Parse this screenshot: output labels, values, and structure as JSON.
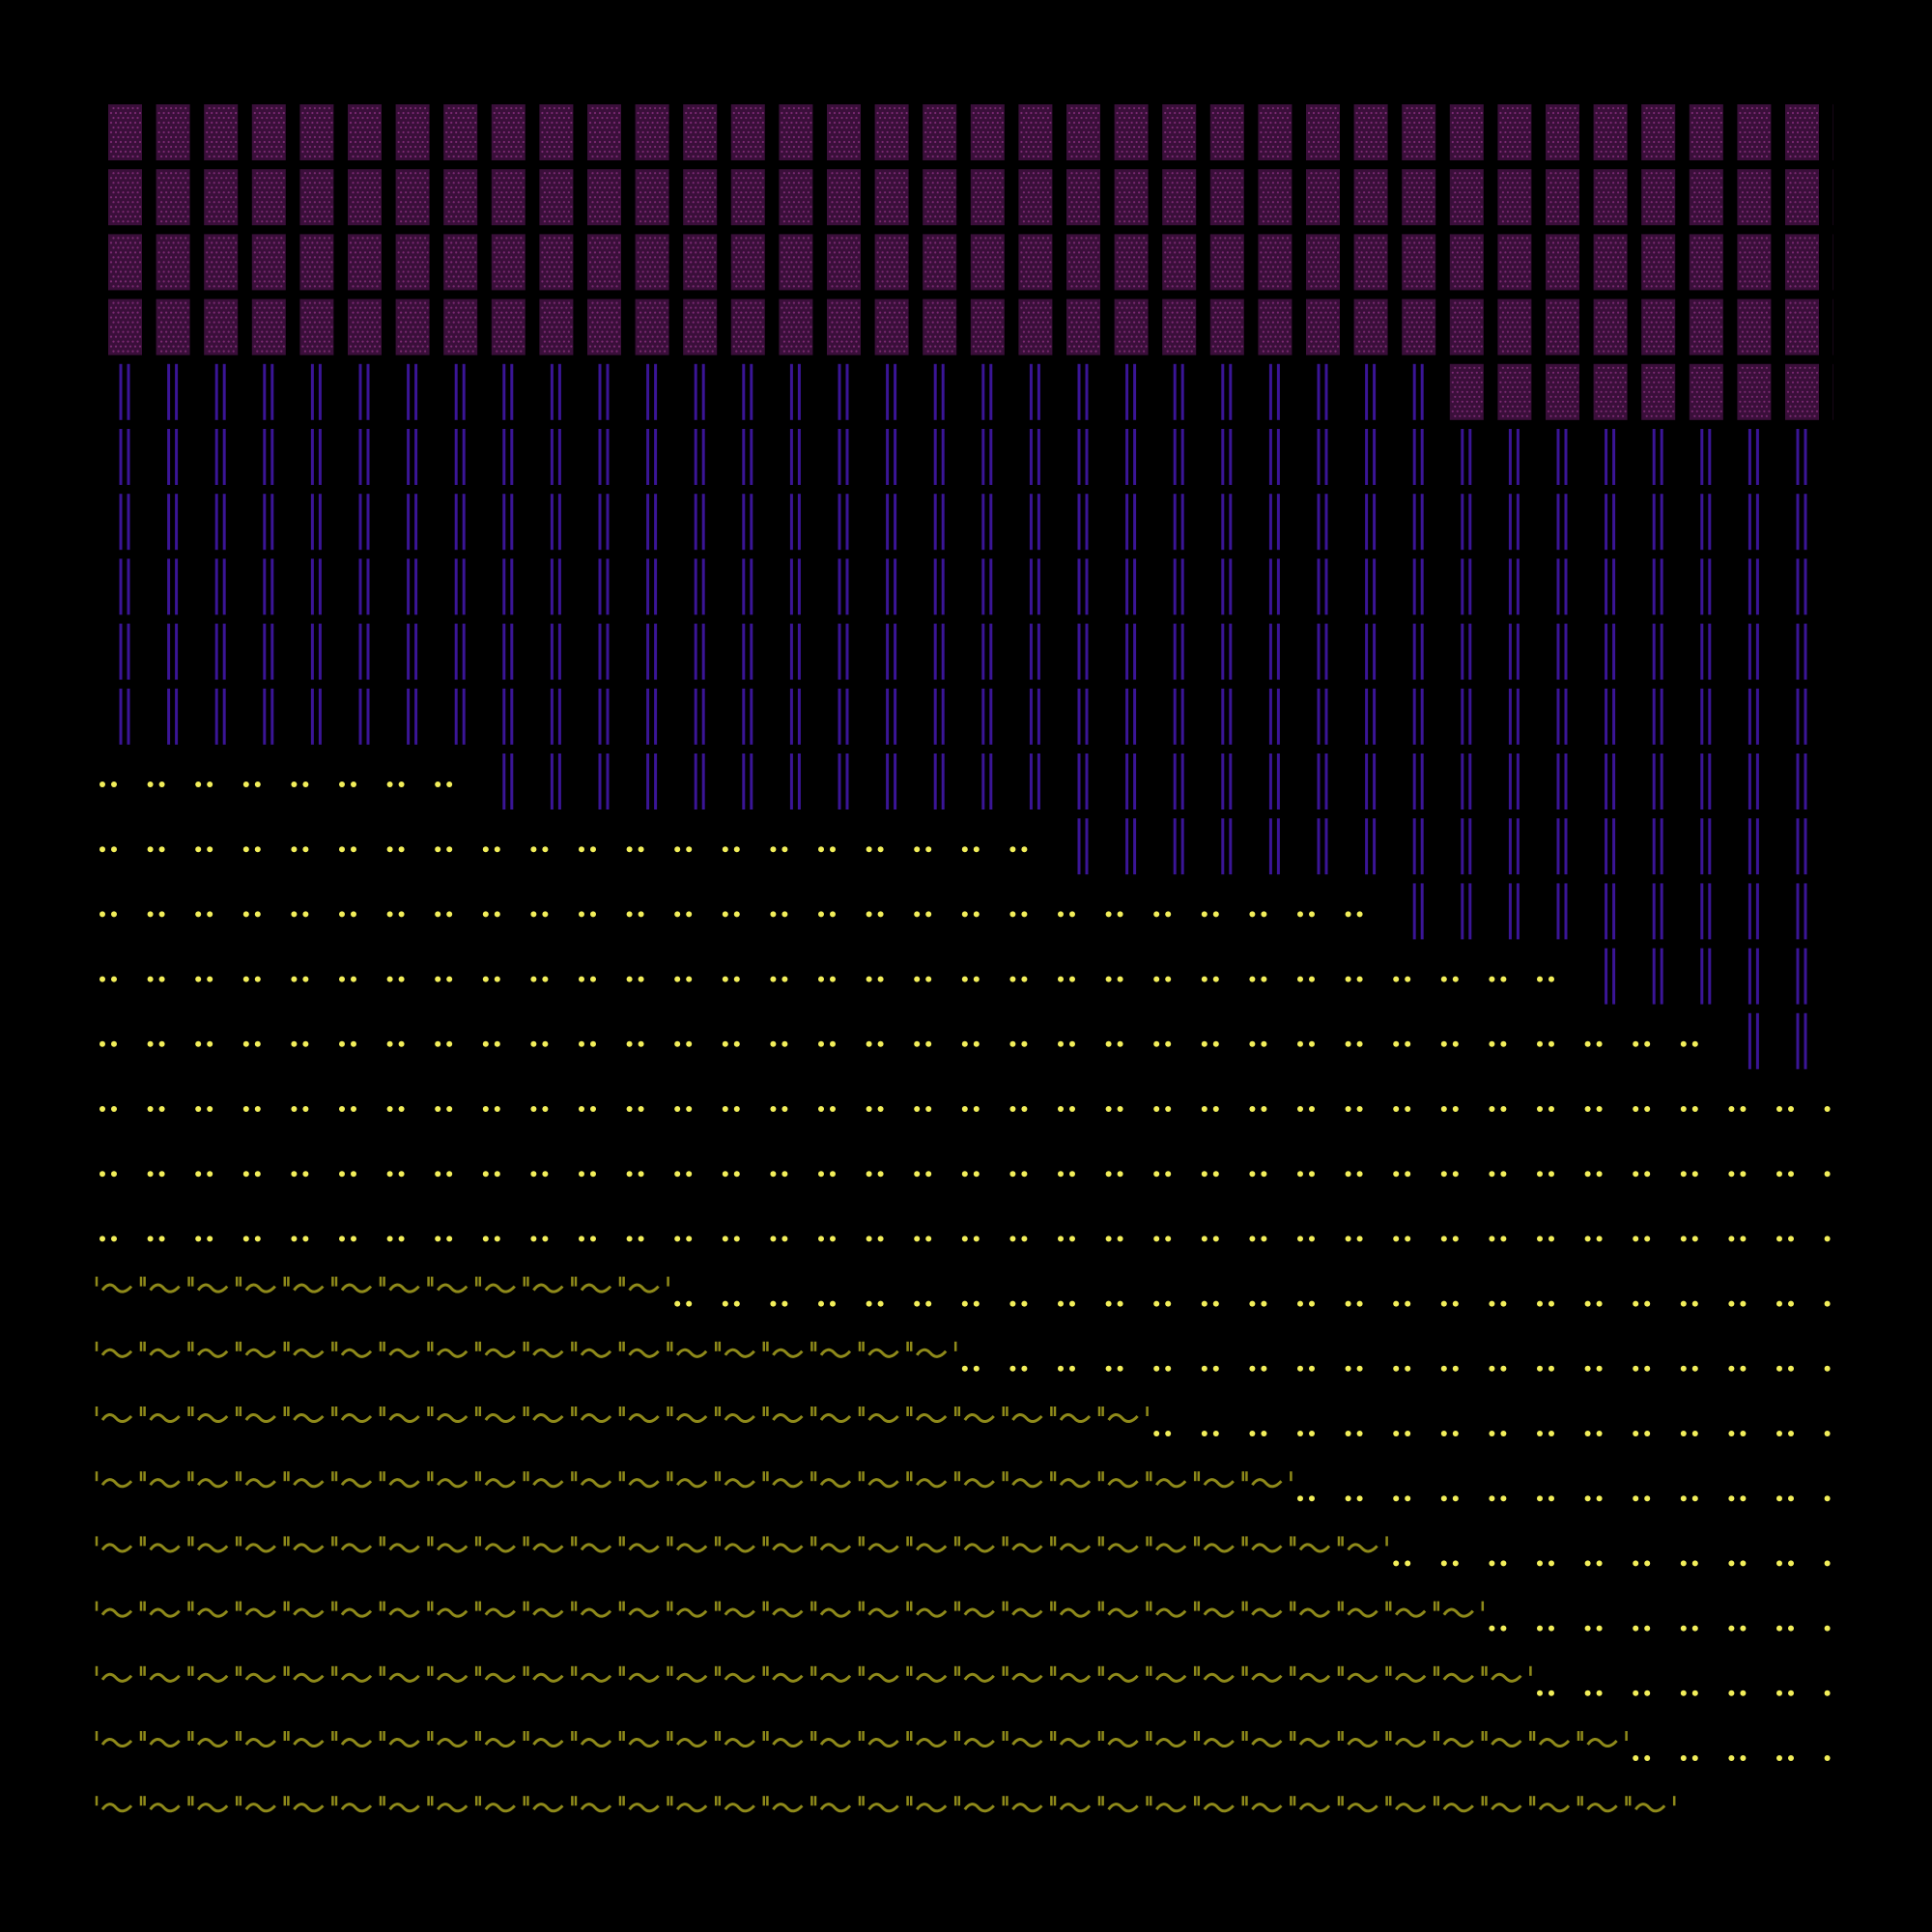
{
  "colors": {
    "background": "#000000",
    "waffle_fill": "#3a0f3a",
    "waffle_dots": "#7a2a72",
    "bar_stroke": "#3a1596",
    "dot_fill": "#f2ee5a",
    "wave_stroke": "#8f8a1a"
  },
  "rows": [
    {
      "y": 0,
      "segments": [
        {
          "pattern": "waffle",
          "from": 0,
          "to": 37
        }
      ]
    },
    {
      "y": 1,
      "segments": [
        {
          "pattern": "waffle",
          "from": 0,
          "to": 37
        }
      ]
    },
    {
      "y": 2,
      "segments": [
        {
          "pattern": "waffle",
          "from": 0,
          "to": 37
        }
      ]
    },
    {
      "y": 3,
      "segments": [
        {
          "pattern": "waffle",
          "from": 0,
          "to": 37
        }
      ]
    },
    {
      "y": 4,
      "segments": [
        {
          "pattern": "bars",
          "from": 0,
          "to": 28
        },
        {
          "pattern": "waffle",
          "from": 28,
          "to": 37
        }
      ]
    },
    {
      "y": 5,
      "segments": [
        {
          "pattern": "bars",
          "from": 0,
          "to": 36
        }
      ]
    },
    {
      "y": 6,
      "segments": [
        {
          "pattern": "bars",
          "from": 0,
          "to": 36
        }
      ]
    },
    {
      "y": 7,
      "segments": [
        {
          "pattern": "bars",
          "from": 0,
          "to": 36
        }
      ]
    },
    {
      "y": 8,
      "segments": [
        {
          "pattern": "bars",
          "from": 0,
          "to": 36
        }
      ]
    },
    {
      "y": 9,
      "segments": [
        {
          "pattern": "bars",
          "from": 0,
          "to": 36
        }
      ]
    },
    {
      "y": 10,
      "segments": [
        {
          "pattern": "dots",
          "from": 0,
          "to": 8
        },
        {
          "pattern": "bars",
          "from": 8,
          "to": 36
        }
      ]
    },
    {
      "y": 11,
      "segments": [
        {
          "pattern": "dots",
          "from": 0,
          "to": 20
        },
        {
          "pattern": "bars",
          "from": 20,
          "to": 36
        }
      ]
    },
    {
      "y": 12,
      "segments": [
        {
          "pattern": "dots",
          "from": 0,
          "to": 27
        },
        {
          "pattern": "bars",
          "from": 27,
          "to": 36
        }
      ]
    },
    {
      "y": 13,
      "segments": [
        {
          "pattern": "dots",
          "from": 0,
          "to": 31
        },
        {
          "pattern": "bars",
          "from": 31,
          "to": 36
        }
      ]
    },
    {
      "y": 14,
      "segments": [
        {
          "pattern": "dots",
          "from": 0,
          "to": 34
        },
        {
          "pattern": "bars",
          "from": 34,
          "to": 36
        }
      ]
    },
    {
      "y": 15,
      "segments": [
        {
          "pattern": "dots",
          "from": 0,
          "to": 37
        }
      ]
    },
    {
      "y": 16,
      "segments": [
        {
          "pattern": "dots",
          "from": 0,
          "to": 37
        }
      ]
    },
    {
      "y": 17,
      "segments": [
        {
          "pattern": "dots",
          "from": 0,
          "to": 37
        }
      ]
    },
    {
      "y": 18,
      "segments": [
        {
          "pattern": "waves",
          "from": 0,
          "to": 12
        },
        {
          "pattern": "dots",
          "from": 12,
          "to": 37
        }
      ]
    },
    {
      "y": 19,
      "segments": [
        {
          "pattern": "waves",
          "from": 0,
          "to": 18
        },
        {
          "pattern": "dots",
          "from": 18,
          "to": 37
        }
      ]
    },
    {
      "y": 20,
      "segments": [
        {
          "pattern": "waves",
          "from": 0,
          "to": 22
        },
        {
          "pattern": "dots",
          "from": 22,
          "to": 37
        }
      ]
    },
    {
      "y": 21,
      "segments": [
        {
          "pattern": "waves",
          "from": 0,
          "to": 25
        },
        {
          "pattern": "dots",
          "from": 25,
          "to": 37
        }
      ]
    },
    {
      "y": 22,
      "segments": [
        {
          "pattern": "waves",
          "from": 0,
          "to": 27
        },
        {
          "pattern": "dots",
          "from": 27,
          "to": 37
        }
      ]
    },
    {
      "y": 23,
      "segments": [
        {
          "pattern": "waves",
          "from": 0,
          "to": 29
        },
        {
          "pattern": "dots",
          "from": 29,
          "to": 37
        }
      ]
    },
    {
      "y": 24,
      "segments": [
        {
          "pattern": "waves",
          "from": 0,
          "to": 30
        },
        {
          "pattern": "dots",
          "from": 30,
          "to": 37
        }
      ]
    },
    {
      "y": 25,
      "segments": [
        {
          "pattern": "waves",
          "from": 0,
          "to": 32
        },
        {
          "pattern": "dots",
          "from": 32,
          "to": 37
        }
      ]
    },
    {
      "y": 26,
      "segments": [
        {
          "pattern": "waves",
          "from": 0,
          "to": 33
        }
      ]
    }
  ]
}
